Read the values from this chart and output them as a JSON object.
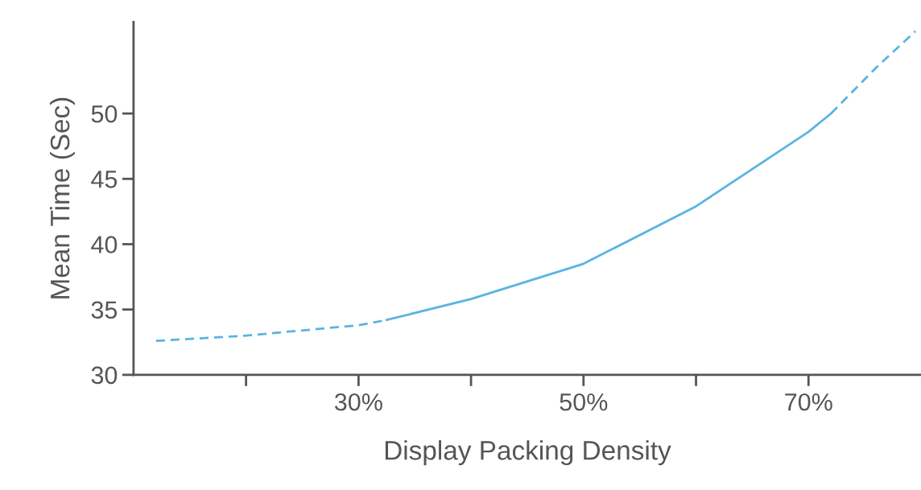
{
  "chart_data": {
    "type": "line",
    "xlabel": "Display Packing Density",
    "ylabel": "Mean Time (Sec)",
    "xlim": [
      10,
      80
    ],
    "ylim": [
      30,
      57
    ],
    "xticks": [
      {
        "value": 20,
        "label": null
      },
      {
        "value": 30,
        "label": "30%"
      },
      {
        "value": 40,
        "label": null
      },
      {
        "value": 50,
        "label": "50%"
      },
      {
        "value": 60,
        "label": null
      },
      {
        "value": 70,
        "label": "70%"
      }
    ],
    "yticks": [
      30,
      35,
      40,
      45,
      50
    ],
    "grid": false,
    "legend": false,
    "marker": "none",
    "series": [
      {
        "color": "#5ab4e0",
        "line_style": "dashed",
        "x": [
          12,
          20,
          30,
          32.5
        ],
        "values": [
          32.6,
          33.0,
          33.8,
          34.2
        ]
      },
      {
        "color": "#5ab4e0",
        "line_style": "solid",
        "x": [
          32.5,
          40,
          50,
          60,
          70,
          72
        ],
        "values": [
          34.2,
          35.8,
          38.5,
          42.9,
          48.6,
          50.0
        ]
      },
      {
        "color": "#5ab4e0",
        "line_style": "dashed",
        "x": [
          72,
          76,
          79.5
        ],
        "values": [
          50.0,
          53.5,
          56.3
        ]
      }
    ]
  }
}
